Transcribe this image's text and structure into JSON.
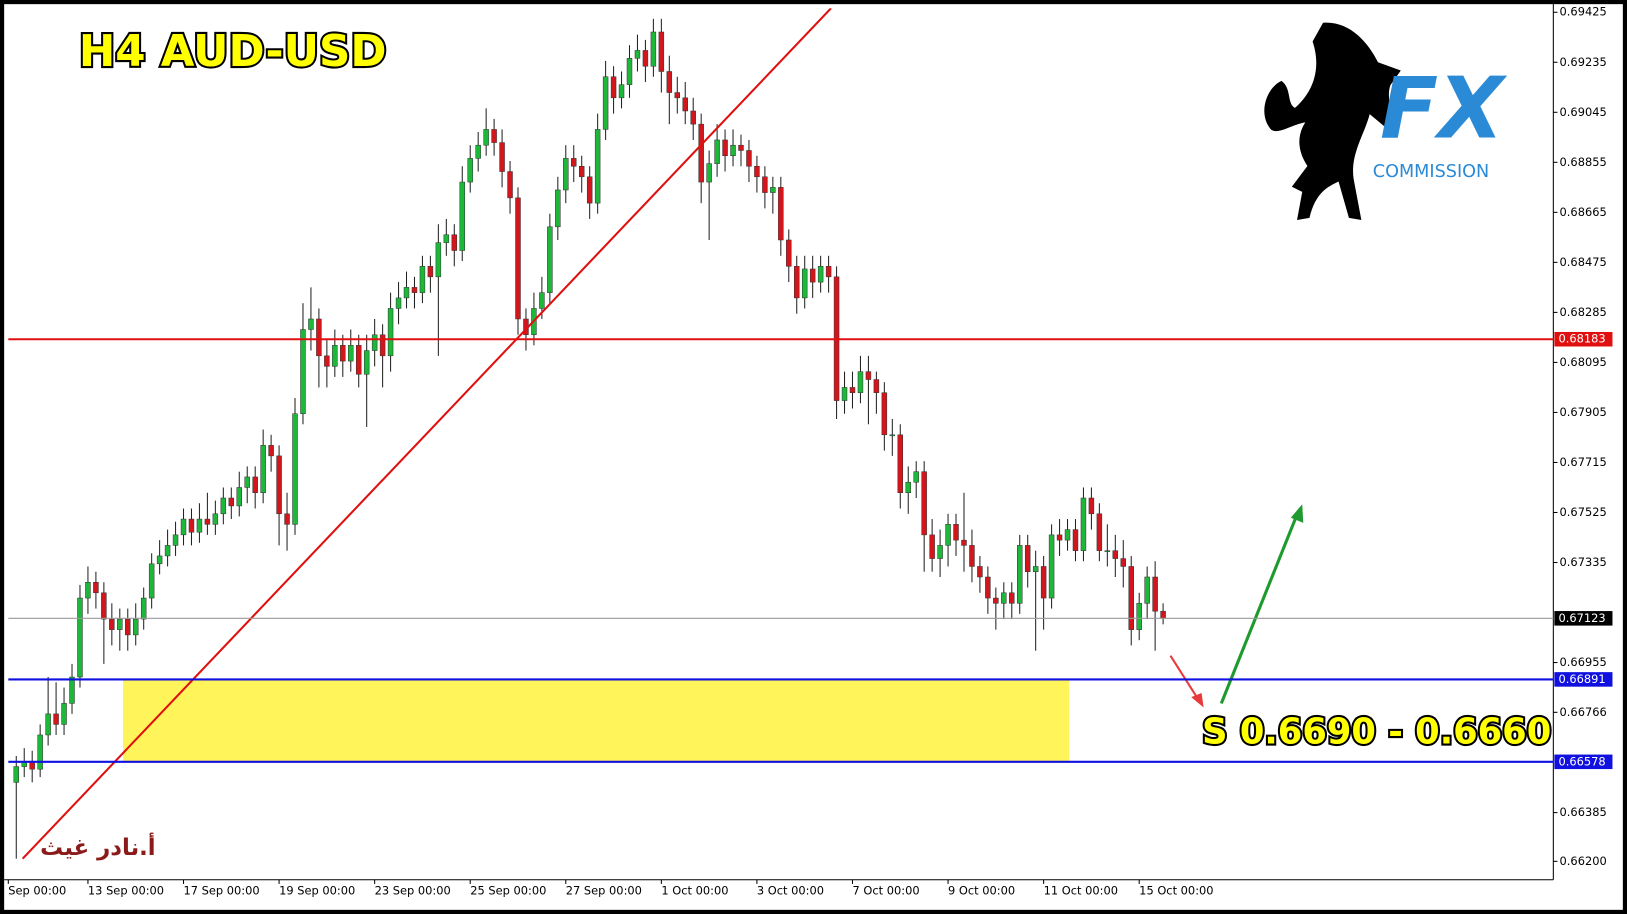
{
  "chart_data": {
    "type": "candlestick",
    "title": "H4 AUD-USD",
    "annotation": "S 0.6690 - 0.6660",
    "author": "أ.نادر غيث",
    "logo_text": "FX",
    "logo_subtext": "COMMISSION",
    "up_color": "#1db83a",
    "down_color": "#d3161c",
    "grid": false,
    "xlim": [
      -1,
      193
    ],
    "xticks": [
      {
        "value": -1,
        "label": "Sep 00:00"
      },
      {
        "value": 9,
        "label": "13 Sep 00:00"
      },
      {
        "value": 21,
        "label": "17 Sep 00:00"
      },
      {
        "value": 33,
        "label": "19 Sep 00:00"
      },
      {
        "value": 45,
        "label": "23 Sep 00:00"
      },
      {
        "value": 57,
        "label": "25 Sep 00:00"
      },
      {
        "value": 69,
        "label": "27 Sep 00:00"
      },
      {
        "value": 81,
        "label": "1 Oct 00:00"
      },
      {
        "value": 93,
        "label": "3 Oct 00:00"
      },
      {
        "value": 105,
        "label": "7 Oct 00:00"
      },
      {
        "value": 117,
        "label": "9 Oct 00:00"
      },
      {
        "value": 129,
        "label": "11 Oct 00:00"
      },
      {
        "value": 141,
        "label": "15 Oct 00:00"
      }
    ],
    "ylim": [
      0.6613,
      0.6944
    ],
    "yticks": [
      0.69425,
      0.69235,
      0.69045,
      0.68855,
      0.68665,
      0.68475,
      0.68285,
      0.68095,
      0.67905,
      0.67715,
      0.67525,
      0.67335,
      0.66955,
      0.66766,
      0.66385,
      {
        "value": 0.662,
        "label": "0.66200"
      }
    ],
    "hlines": [
      {
        "value": 0.68183,
        "color": "#e01010"
      },
      {
        "value": 0.67123,
        "color": "#000000"
      },
      {
        "value": 0.66891,
        "color": "#1010e0"
      },
      {
        "value": 0.66578,
        "color": "#1010e0"
      }
    ],
    "zone": {
      "x": [
        13.4,
        132.2
      ],
      "y": [
        0.66578,
        0.66891
      ],
      "color": "#fff55a"
    },
    "trendline": {
      "x": [
        0.8,
        102.3
      ],
      "y": [
        0.6621,
        0.6944
      ],
      "color": "#e01010"
    },
    "open": [
      0.665,
      0.6656,
      0.6658,
      0.6655,
      0.6668,
      0.6676,
      0.6672,
      0.668,
      0.669,
      0.672,
      0.6726,
      0.6722,
      0.6712,
      0.6708,
      0.6712,
      0.6706,
      0.6712,
      0.672,
      0.6733,
      0.6736,
      0.674,
      0.6744,
      0.675,
      0.6745,
      0.675,
      0.6748,
      0.6752,
      0.6758,
      0.6755,
      0.6762,
      0.6766,
      0.676,
      0.6778,
      0.6774,
      0.6752,
      0.6748,
      0.679,
      0.6822,
      0.6826,
      0.6812,
      0.6808,
      0.6816,
      0.681,
      0.6816,
      0.6805,
      0.6814,
      0.682,
      0.6812,
      0.683,
      0.6834,
      0.6838,
      0.6836,
      0.6846,
      0.6842,
      0.6855,
      0.6858,
      0.6852,
      0.6878,
      0.6887,
      0.6892,
      0.6898,
      0.6893,
      0.6882,
      0.6872,
      0.6826,
      0.682,
      0.683,
      0.6836,
      0.6861,
      0.6875,
      0.6887,
      0.6884,
      0.688,
      0.687,
      0.6898,
      0.6918,
      0.691,
      0.6915,
      0.6925,
      0.6928,
      0.6922,
      0.6935,
      0.692,
      0.6912,
      0.691,
      0.6905,
      0.69,
      0.6878,
      0.6885,
      0.6894,
      0.6888,
      0.6892,
      0.689,
      0.6884,
      0.688,
      0.6874,
      0.6876,
      0.6856,
      0.6846,
      0.6834,
      0.6845,
      0.684,
      0.6846,
      0.6842,
      0.6795,
      0.68,
      0.6798,
      0.6806,
      0.6803,
      0.6798,
      0.6782,
      0.6782,
      0.676,
      0.6764,
      0.6768,
      0.6744,
      0.6735,
      0.674,
      0.6748,
      0.6742,
      0.674,
      0.6732,
      0.6728,
      0.672,
      0.6718,
      0.6722,
      0.6718,
      0.674,
      0.673,
      0.6732,
      0.672,
      0.6744,
      0.6742,
      0.6746,
      0.6738,
      0.6758,
      0.6752,
      0.6738,
      0.6738,
      0.6735,
      0.6732,
      0.6708,
      0.6718,
      0.6728,
      0.6715
    ],
    "high": [
      0.666,
      0.6663,
      0.6662,
      0.6672,
      0.669,
      0.6688,
      0.6686,
      0.6695,
      0.6725,
      0.6732,
      0.673,
      0.6726,
      0.6718,
      0.6716,
      0.6716,
      0.6718,
      0.6724,
      0.6737,
      0.6742,
      0.6746,
      0.6749,
      0.6754,
      0.6754,
      0.6756,
      0.676,
      0.6757,
      0.6762,
      0.6762,
      0.6768,
      0.677,
      0.677,
      0.6784,
      0.6782,
      0.6778,
      0.676,
      0.6796,
      0.6832,
      0.6838,
      0.683,
      0.6818,
      0.6822,
      0.682,
      0.6822,
      0.682,
      0.682,
      0.6826,
      0.6824,
      0.6836,
      0.684,
      0.6844,
      0.6842,
      0.685,
      0.685,
      0.6862,
      0.6864,
      0.6862,
      0.6884,
      0.6892,
      0.6897,
      0.6906,
      0.6902,
      0.6898,
      0.6886,
      0.6876,
      0.683,
      0.6836,
      0.6842,
      0.6866,
      0.688,
      0.6892,
      0.6892,
      0.6888,
      0.6884,
      0.6904,
      0.6924,
      0.6922,
      0.692,
      0.693,
      0.6934,
      0.6932,
      0.694,
      0.694,
      0.6926,
      0.6918,
      0.6916,
      0.691,
      0.6904,
      0.689,
      0.69,
      0.6898,
      0.6898,
      0.6896,
      0.6894,
      0.6888,
      0.6884,
      0.688,
      0.688,
      0.686,
      0.685,
      0.685,
      0.685,
      0.685,
      0.685,
      0.6846,
      0.6806,
      0.6806,
      0.6812,
      0.6812,
      0.6806,
      0.6802,
      0.6788,
      0.6786,
      0.677,
      0.6772,
      0.6772,
      0.675,
      0.6746,
      0.6752,
      0.6752,
      0.676,
      0.6746,
      0.6736,
      0.6732,
      0.6724,
      0.6726,
      0.6726,
      0.6744,
      0.6744,
      0.6738,
      0.6736,
      0.6748,
      0.675,
      0.675,
      0.675,
      0.6762,
      0.6762,
      0.6756,
      0.6748,
      0.6744,
      0.6742,
      0.6736,
      0.6722,
      0.6732,
      0.6734,
      0.6718
    ],
    "low": [
      0.6621,
      0.6652,
      0.665,
      0.6652,
      0.6664,
      0.6668,
      0.6668,
      0.6676,
      0.6686,
      0.6714,
      0.6716,
      0.6695,
      0.6702,
      0.67,
      0.67,
      0.6702,
      0.6708,
      0.6716,
      0.6729,
      0.6732,
      0.6736,
      0.674,
      0.674,
      0.6741,
      0.6744,
      0.6744,
      0.6748,
      0.675,
      0.6751,
      0.6756,
      0.6754,
      0.6756,
      0.6768,
      0.674,
      0.6738,
      0.6744,
      0.6786,
      0.6814,
      0.68,
      0.68,
      0.6804,
      0.6804,
      0.6806,
      0.68,
      0.6785,
      0.6808,
      0.68,
      0.6806,
      0.6824,
      0.683,
      0.683,
      0.6832,
      0.6836,
      0.6812,
      0.685,
      0.6846,
      0.6848,
      0.6874,
      0.6882,
      0.6888,
      0.6888,
      0.6876,
      0.6866,
      0.682,
      0.6814,
      0.6816,
      0.6826,
      0.6832,
      0.6856,
      0.687,
      0.6878,
      0.6874,
      0.6864,
      0.6866,
      0.6894,
      0.6904,
      0.6906,
      0.691,
      0.692,
      0.6916,
      0.6918,
      0.6912,
      0.69,
      0.6904,
      0.69,
      0.6894,
      0.687,
      0.6856,
      0.688,
      0.6882,
      0.6884,
      0.6884,
      0.6878,
      0.6874,
      0.6868,
      0.6866,
      0.685,
      0.684,
      0.6828,
      0.683,
      0.6834,
      0.6836,
      0.6836,
      0.6788,
      0.679,
      0.6792,
      0.6794,
      0.6786,
      0.679,
      0.6776,
      0.6774,
      0.6754,
      0.6752,
      0.6758,
      0.673,
      0.673,
      0.6728,
      0.6732,
      0.6736,
      0.673,
      0.6726,
      0.6722,
      0.6714,
      0.6708,
      0.6712,
      0.6712,
      0.6714,
      0.6724,
      0.67,
      0.6708,
      0.6716,
      0.6736,
      0.6738,
      0.6734,
      0.6734,
      0.6746,
      0.6734,
      0.6732,
      0.6728,
      0.6724,
      0.6702,
      0.6704,
      0.6712,
      0.67,
      0.671
    ],
    "close": [
      0.6656,
      0.6658,
      0.6655,
      0.6668,
      0.6676,
      0.6672,
      0.668,
      0.669,
      0.672,
      0.6726,
      0.6722,
      0.6712,
      0.6708,
      0.6712,
      0.6706,
      0.6712,
      0.672,
      0.6733,
      0.6736,
      0.674,
      0.6744,
      0.675,
      0.6745,
      0.675,
      0.6748,
      0.6752,
      0.6758,
      0.6755,
      0.6762,
      0.6766,
      0.676,
      0.6778,
      0.6774,
      0.6752,
      0.6748,
      0.679,
      0.6822,
      0.6826,
      0.6812,
      0.6808,
      0.6816,
      0.681,
      0.6816,
      0.6805,
      0.6814,
      0.682,
      0.6812,
      0.683,
      0.6834,
      0.6838,
      0.6836,
      0.6846,
      0.6842,
      0.6855,
      0.6858,
      0.6852,
      0.6878,
      0.6887,
      0.6892,
      0.6898,
      0.6893,
      0.6882,
      0.6872,
      0.6826,
      0.682,
      0.683,
      0.6836,
      0.6861,
      0.6875,
      0.6887,
      0.6884,
      0.688,
      0.687,
      0.6898,
      0.6918,
      0.691,
      0.6915,
      0.6925,
      0.6928,
      0.6922,
      0.6935,
      0.692,
      0.6912,
      0.691,
      0.6905,
      0.69,
      0.6878,
      0.6885,
      0.6894,
      0.6888,
      0.6892,
      0.689,
      0.6884,
      0.688,
      0.6874,
      0.6876,
      0.6856,
      0.6846,
      0.6834,
      0.6845,
      0.684,
      0.6846,
      0.6842,
      0.6795,
      0.68,
      0.6798,
      0.6806,
      0.6803,
      0.6798,
      0.6782,
      0.6782,
      0.676,
      0.6764,
      0.6768,
      0.6744,
      0.6735,
      0.674,
      0.6748,
      0.6742,
      0.674,
      0.6732,
      0.6728,
      0.672,
      0.6718,
      0.6722,
      0.6718,
      0.674,
      0.673,
      0.6732,
      0.672,
      0.6744,
      0.6742,
      0.6746,
      0.6738,
      0.6758,
      0.6752,
      0.6738,
      0.6738,
      0.6735,
      0.6732,
      0.6708,
      0.6718,
      0.6728,
      0.6715,
      0.67123
    ]
  }
}
